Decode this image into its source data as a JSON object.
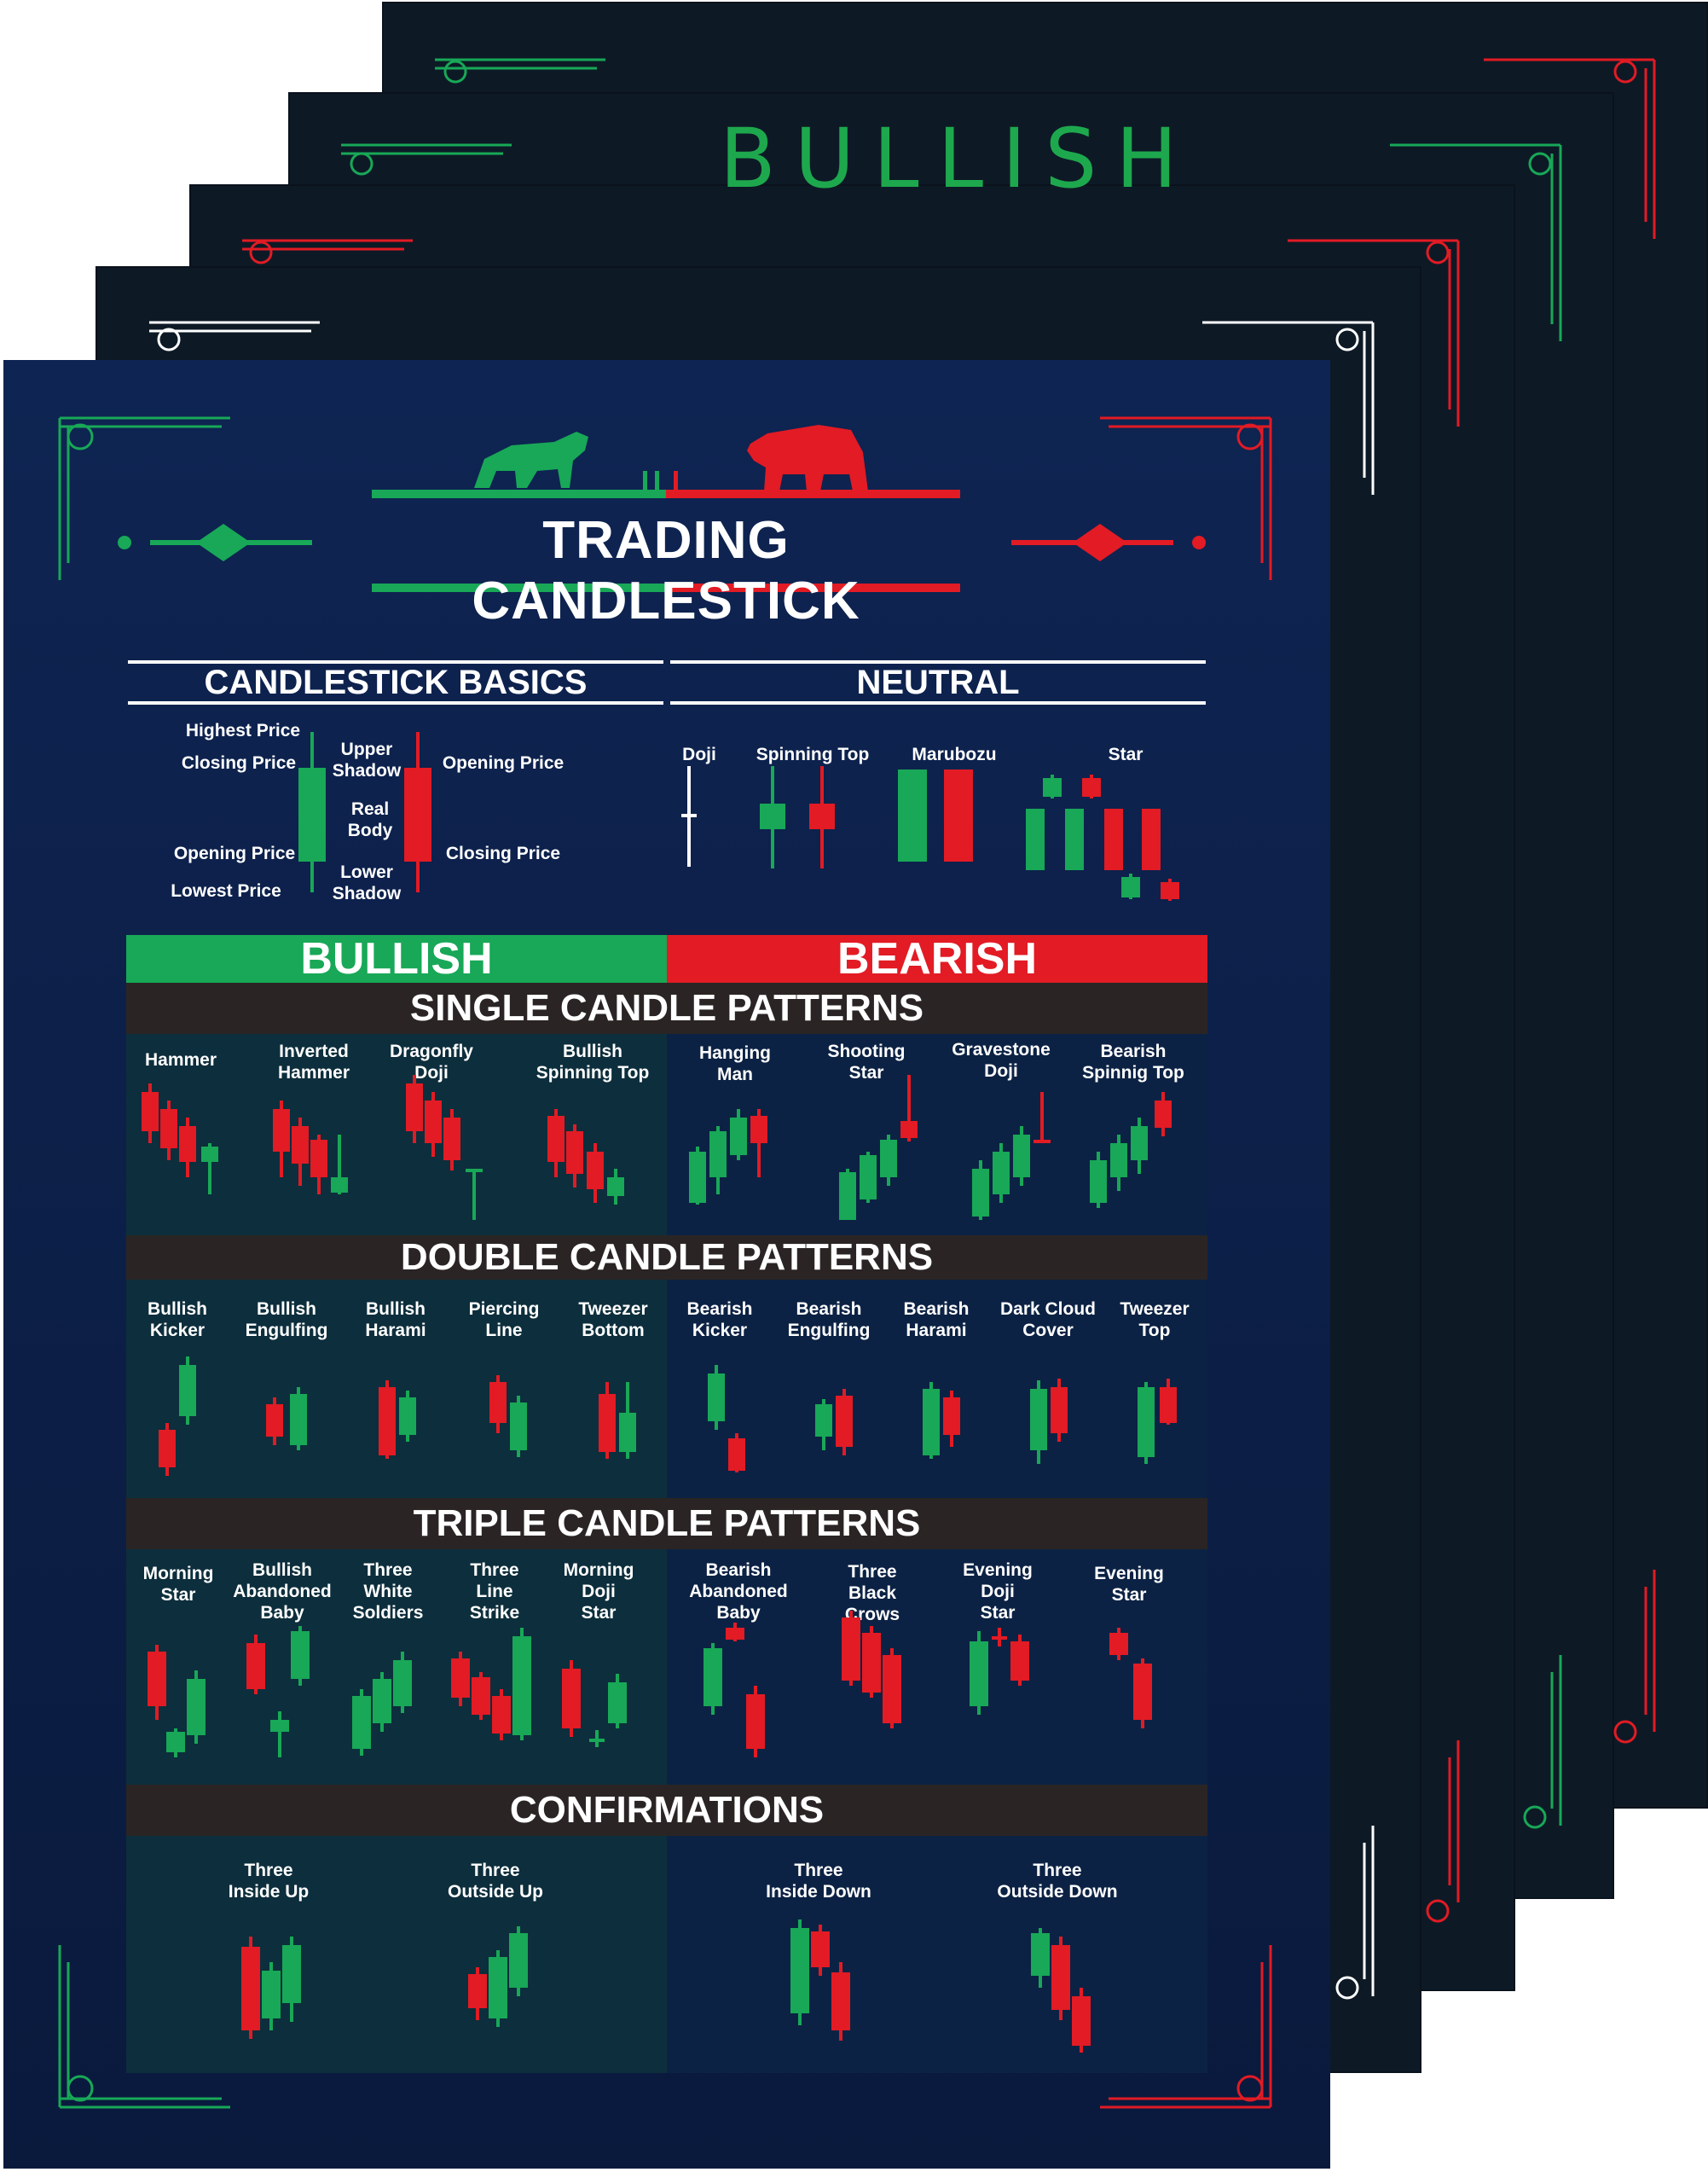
{
  "stack_title": "BULLISH",
  "title": "TRADING CANDLESTICK",
  "colors": {
    "bull": "#18a857",
    "bear": "#e21b24",
    "navy": "#0e2452",
    "band": "#2a2524",
    "white": "#ffffff"
  },
  "basics": {
    "header": "CANDLESTICK BASICS",
    "labels": {
      "highest_price": "Highest Price",
      "closing_price_left": "Closing Price",
      "opening_price_left": "Opening Price",
      "lowest_price": "Lowest Price",
      "upper_shadow": "Upper\nShadow",
      "real_body": "Real\nBody",
      "lower_shadow": "Lower\nShadow",
      "opening_price_right": "Opening Price",
      "closing_price_right": "Closing Price"
    }
  },
  "neutral": {
    "header": "NEUTRAL",
    "items": [
      "Doji",
      "Spinning Top",
      "Marubozu",
      "Star"
    ]
  },
  "sides": {
    "bullish": "BULLISH",
    "bearish": "BEARISH"
  },
  "sections": {
    "single": {
      "title": "SINGLE CANDLE PATTERNS",
      "bullish": [
        "Hammer",
        "Inverted\nHammer",
        "Dragonfly\nDoji",
        "Bullish\nSpinning Top"
      ],
      "bearish": [
        "Hanging\nMan",
        "Shooting\nStar",
        "Gravestone\nDoji",
        "Bearish\nSpinnig Top"
      ]
    },
    "double": {
      "title": "DOUBLE CANDLE PATTERNS",
      "bullish": [
        "Bullish\nKicker",
        "Bullish\nEngulfing",
        "Bullish\nHarami",
        "Piercing\nLine",
        "Tweezer\nBottom"
      ],
      "bearish": [
        "Bearish\nKicker",
        "Bearish\nEngulfing",
        "Bearish\nHarami",
        "Dark Cloud\nCover",
        "Tweezer\nTop"
      ]
    },
    "triple": {
      "title": "TRIPLE CANDLE PATTERNS",
      "bullish": [
        "Morning\nStar",
        "Bullish\nAbandoned\nBaby",
        "Three\nWhite\nSoldiers",
        "Three\nLine\nStrike",
        "Morning\nDoji\nStar"
      ],
      "bearish": [
        "Bearish\nAbandoned\nBaby",
        "Three\nBlack\nCrows",
        "Evening\nDoji\nStar",
        "Evening\nStar"
      ]
    },
    "confirmations": {
      "title": "CONFIRMATIONS",
      "bullish": [
        "Three\nInside Up",
        "Three\nOutside Up"
      ],
      "bearish": [
        "Three\nInside Down",
        "Three\nOutside Down"
      ]
    }
  }
}
